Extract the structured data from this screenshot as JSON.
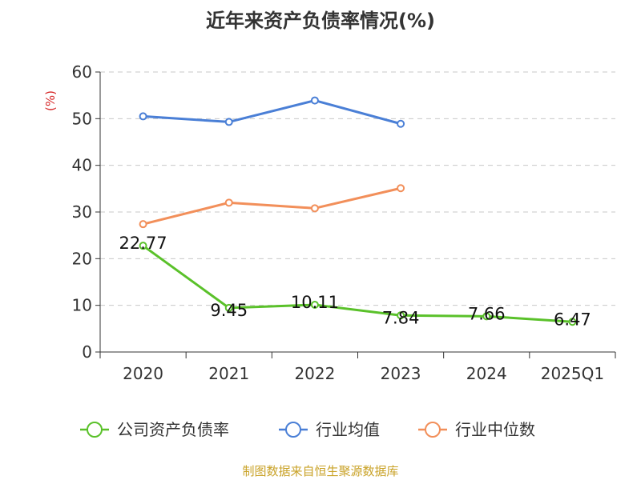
{
  "title": "近年来资产负债率情况(%)",
  "footer": "制图数据来自恒生聚源数据库",
  "chart_data": {
    "type": "line",
    "title": "近年来资产负债率情况(%)",
    "ylabel": "(%)",
    "xlabel": "",
    "categories": [
      "2020",
      "2021",
      "2022",
      "2023",
      "2024",
      "2025Q1"
    ],
    "ylim": [
      0,
      60
    ],
    "yticks": [
      0,
      10,
      20,
      30,
      40,
      50,
      60
    ],
    "grid": true,
    "legend_position": "bottom",
    "series": [
      {
        "name": "公司资产负债率",
        "color": "#5ac12a",
        "labels": true,
        "values": [
          22.77,
          9.45,
          10.11,
          7.84,
          7.66,
          6.47
        ]
      },
      {
        "name": "行业均值",
        "color": "#4a7fd6",
        "labels": false,
        "values": [
          50.5,
          49.3,
          53.9,
          48.9,
          null,
          null
        ]
      },
      {
        "name": "行业中位数",
        "color": "#f28f5a",
        "labels": false,
        "values": [
          27.4,
          32.0,
          30.8,
          35.1,
          null,
          null
        ]
      }
    ]
  }
}
